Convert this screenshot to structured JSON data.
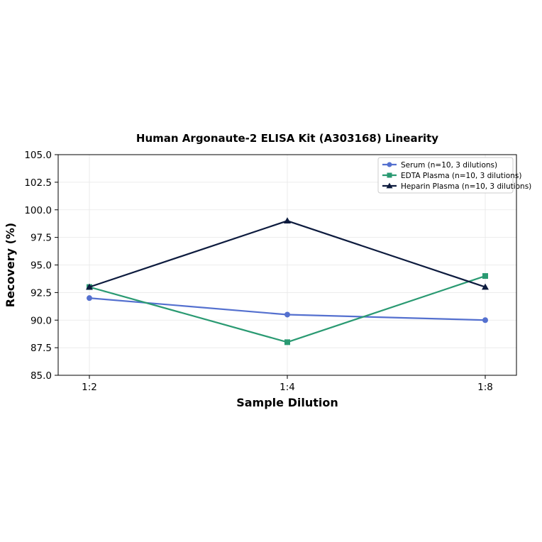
{
  "chart_data": {
    "type": "line",
    "title": "Human Argonaute-2 ELISA Kit (A303168) Linearity",
    "xlabel": "Sample Dilution",
    "ylabel": "Recovery (%)",
    "categories": [
      "1:2",
      "1:4",
      "1:8"
    ],
    "ylim": [
      85.0,
      105.0
    ],
    "yticks": [
      "85.0",
      "87.5",
      "90.0",
      "92.5",
      "95.0",
      "97.5",
      "100.0",
      "102.5",
      "105.0"
    ],
    "grid": true,
    "legend_position": "top-right",
    "series": [
      {
        "name": "Serum (n=10, 3 dilutions)",
        "values": [
          92.0,
          90.5,
          90.0
        ],
        "color": "#5470cf",
        "marker": "circle"
      },
      {
        "name": "EDTA Plasma (n=10, 3 dilutions)",
        "values": [
          93.0,
          88.0,
          94.0
        ],
        "color": "#2a9a72",
        "marker": "square"
      },
      {
        "name": "Heparin Plasma (n=10, 3 dilutions)",
        "values": [
          93.0,
          99.0,
          93.0
        ],
        "color": "#0d1b3e",
        "marker": "triangle"
      }
    ]
  }
}
